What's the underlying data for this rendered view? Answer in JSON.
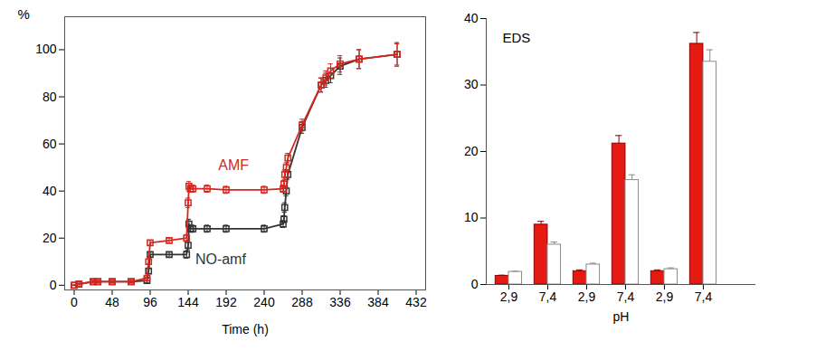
{
  "chart_data": [
    {
      "type": "line",
      "y_label": "%",
      "x_label": "Time (h)",
      "x": [
        0,
        6,
        24,
        30,
        48,
        72,
        92,
        94,
        96,
        120,
        142,
        144,
        145,
        147,
        150,
        168,
        192,
        240,
        264,
        265,
        266,
        268,
        270,
        288,
        312,
        318,
        324,
        336,
        360,
        408
      ],
      "xlim": [
        -12,
        444
      ],
      "ylim": [
        -2,
        114
      ],
      "xticks": [
        0,
        48,
        96,
        144,
        192,
        240,
        288,
        336,
        384,
        432
      ],
      "yticks": [
        0,
        20,
        40,
        60,
        80,
        100
      ],
      "grid": false,
      "series": [
        {
          "name": "AMF",
          "color": "#d7261e",
          "marker": "square",
          "line_style": "solid",
          "label_x": 182,
          "label_y": 51,
          "values": [
            0,
            0.5,
            1.5,
            1.5,
            1.5,
            1.5,
            3,
            10,
            18,
            19,
            20,
            35,
            42,
            41,
            41,
            41,
            40.5,
            40.5,
            41,
            43,
            47,
            50,
            54,
            68,
            85,
            88,
            91,
            94,
            96,
            98
          ],
          "errors": [
            0,
            0.3,
            0.5,
            0.5,
            0.5,
            0.5,
            1,
            1,
            1,
            1,
            1.5,
            2,
            2,
            1.5,
            1.5,
            1.5,
            1.5,
            1.5,
            1.5,
            1.5,
            2,
            2,
            2,
            2.5,
            3,
            3,
            3,
            3.5,
            4,
            4.5
          ]
        },
        {
          "name": "NO-amf",
          "color": "#333333",
          "marker": "square",
          "line_style": "solid",
          "label_x": 153,
          "label_y": 11,
          "values": [
            0,
            0.5,
            1.5,
            1.5,
            1.5,
            1.5,
            2,
            6,
            13,
            13,
            13,
            17,
            26,
            24,
            24,
            24,
            24,
            24,
            26,
            28,
            33,
            40,
            47,
            67,
            85,
            87,
            89,
            93,
            96,
            98
          ],
          "errors": [
            0,
            0.3,
            0.5,
            0.5,
            0.5,
            0.5,
            1,
            1,
            1,
            1,
            1.5,
            2,
            2,
            1.5,
            1.5,
            1.5,
            1.5,
            1.5,
            1.5,
            1.5,
            2,
            2,
            2,
            2.5,
            3,
            3,
            3,
            3.5,
            4,
            5
          ]
        }
      ]
    },
    {
      "type": "bar",
      "y_label": "EDS",
      "x_label": "pH",
      "categories": [
        "2,9",
        "7,4",
        "2,9",
        "7,4",
        "2,9",
        "7,4"
      ],
      "ylim": [
        0,
        40
      ],
      "yticks": [
        0,
        10,
        20,
        30,
        40
      ],
      "grid": false,
      "series": [
        {
          "color": "#e41a13",
          "values": [
            1.3,
            9,
            2,
            21.2,
            2,
            36.2
          ],
          "errors": [
            0.1,
            0.5,
            0.2,
            1.2,
            0.2,
            1.7
          ]
        },
        {
          "color": "#ffffff",
          "values": [
            1.9,
            6,
            3,
            15.7,
            2.3,
            33.5
          ],
          "errors": [
            0.1,
            0.4,
            0.2,
            0.8,
            0.2,
            1.8
          ]
        }
      ]
    }
  ]
}
